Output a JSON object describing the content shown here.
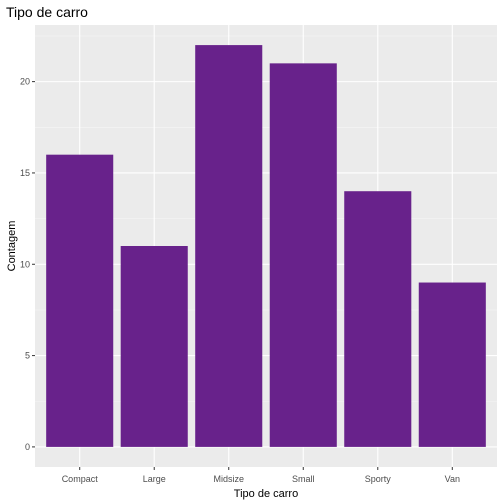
{
  "chart_data": {
    "type": "bar",
    "title": "Tipo de carro",
    "xlabel": "Tipo de carro",
    "ylabel": "Contagem",
    "categories": [
      "Compact",
      "Large",
      "Midsize",
      "Small",
      "Sporty",
      "Van"
    ],
    "values": [
      16,
      11,
      22,
      21,
      14,
      9
    ],
    "ylim": [
      -1.1,
      23.1
    ],
    "yticks": [
      0,
      5,
      10,
      15,
      20
    ],
    "grid": true,
    "legend": "none",
    "colors": {
      "bar": "#68228B",
      "panel": "#EBEBEB",
      "grid_major": "#FFFFFF",
      "grid_minor": "#F5F5F5",
      "tick_text": "#4D4D4D",
      "tick_mark": "#333333"
    }
  }
}
